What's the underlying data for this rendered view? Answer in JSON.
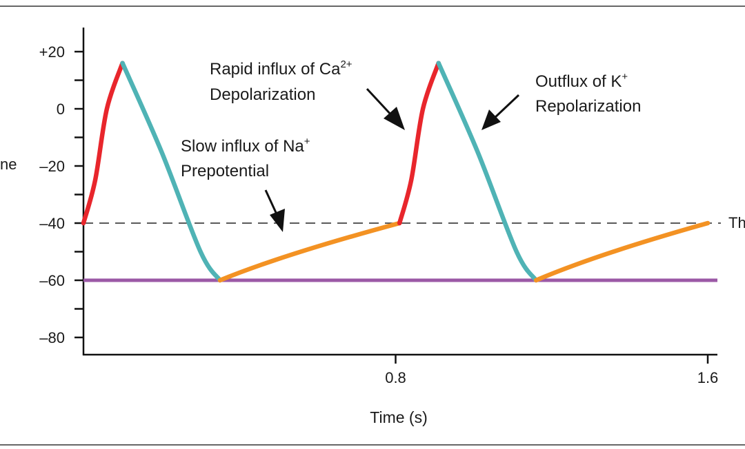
{
  "chart_data": {
    "type": "line",
    "xlabel": "Time (s)",
    "ylabel_fragment": "ne",
    "xlim": [
      0,
      1.6
    ],
    "ylim": [
      -85,
      30
    ],
    "x_ticks": [
      {
        "value": 0.8,
        "label": "0.8"
      },
      {
        "value": 1.6,
        "label": "1.6"
      }
    ],
    "y_ticks": [
      {
        "value": 20,
        "label": "+20"
      },
      {
        "value": 0,
        "label": "0"
      },
      {
        "value": -20,
        "label": "–20"
      },
      {
        "value": -40,
        "label": "–40"
      },
      {
        "value": -60,
        "label": "–60"
      },
      {
        "value": -80,
        "label": "–80"
      }
    ],
    "y_minor_ticks": [
      10,
      -10,
      -30,
      -50,
      -70
    ],
    "threshold": {
      "value": -40,
      "label_fragment": "Th",
      "style": "dashed"
    },
    "baseline": {
      "value": -60,
      "color": "#9b59a6"
    },
    "colors": {
      "depolarization": "#e8262c",
      "repolarization": "#4fb3b5",
      "prepotential": "#f39223",
      "baseline": "#9b59a6",
      "threshold": "#222222"
    },
    "series": [
      {
        "phase": "depolarization",
        "color": "#e8262c",
        "points": [
          [
            0.0,
            -40
          ],
          [
            0.03,
            -25
          ],
          [
            0.06,
            0
          ],
          [
            0.1,
            16
          ]
        ]
      },
      {
        "phase": "repolarization",
        "color": "#4fb3b5",
        "points": [
          [
            0.1,
            16
          ],
          [
            0.2,
            -15
          ],
          [
            0.3,
            -50
          ],
          [
            0.35,
            -60
          ]
        ]
      },
      {
        "phase": "prepotential",
        "color": "#f39223",
        "points": [
          [
            0.35,
            -60
          ],
          [
            0.81,
            -40
          ]
        ]
      },
      {
        "phase": "depolarization",
        "color": "#e8262c",
        "points": [
          [
            0.81,
            -40
          ],
          [
            0.84,
            -25
          ],
          [
            0.87,
            0
          ],
          [
            0.91,
            16
          ]
        ]
      },
      {
        "phase": "repolarization",
        "color": "#4fb3b5",
        "points": [
          [
            0.91,
            16
          ],
          [
            1.01,
            -15
          ],
          [
            1.11,
            -50
          ],
          [
            1.16,
            -60
          ]
        ]
      },
      {
        "phase": "prepotential",
        "color": "#f39223",
        "points": [
          [
            1.16,
            -60
          ],
          [
            1.6,
            -40
          ]
        ]
      }
    ],
    "annotations": [
      {
        "id": "ca",
        "line1": "Rapid influx of Ca",
        "line1_sup": "2+",
        "line2": "Depolarization"
      },
      {
        "id": "k",
        "line1": "Outflux of K",
        "line1_sup": "+",
        "line2": "Repolarization"
      },
      {
        "id": "na",
        "line1": "Slow influx of Na",
        "line1_sup": "+",
        "line2": "Prepotential"
      }
    ]
  }
}
